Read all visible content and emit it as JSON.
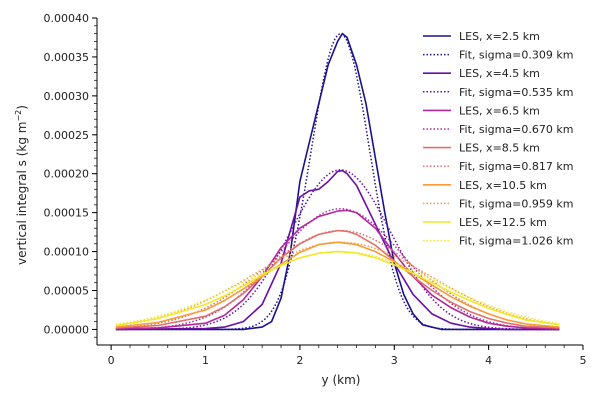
{
  "chart_data": {
    "type": "line",
    "title": "",
    "xlabel": "y (km)",
    "ylabel_main": "vertical integral s (kg m",
    "ylabel_sup": "−2",
    "ylabel_end": ")",
    "xlim": [
      -0.15,
      5.0
    ],
    "ylim": [
      -2e-05,
      0.0004
    ],
    "x_ticks": [
      0,
      1,
      2,
      3,
      4,
      5
    ],
    "x_tick_labels": [
      "0",
      "1",
      "2",
      "3",
      "4",
      "5"
    ],
    "y_ticks": [
      0,
      5e-05,
      0.0001,
      0.00015,
      0.0002,
      0.00025,
      0.0003,
      0.00035,
      0.0004
    ],
    "y_tick_labels": [
      "0.00000",
      "0.00005",
      "0.00010",
      "0.00015",
      "0.00020",
      "0.00025",
      "0.00030",
      "0.00035",
      "0.00040"
    ],
    "grid": false,
    "legend_position": "top-right",
    "series": [
      {
        "name": "LES, x=2.5 km",
        "style": "solid",
        "color": "#1a128e",
        "x": [
          0.05,
          1.4,
          1.6,
          1.7,
          1.8,
          1.9,
          2.0,
          2.1,
          2.2,
          2.3,
          2.4,
          2.45,
          2.5,
          2.6,
          2.7,
          2.8,
          2.9,
          3.0,
          3.1,
          3.2,
          3.3,
          3.5,
          4.75
        ],
        "y": [
          0,
          0,
          3e-06,
          1e-05,
          4e-05,
          0.0001,
          0.00019,
          0.00024,
          0.00029,
          0.00034,
          0.00037,
          0.00038,
          0.000375,
          0.00034,
          0.00029,
          0.00022,
          0.00015,
          8.5e-05,
          4.5e-05,
          2e-05,
          6e-06,
          0,
          0
        ]
      },
      {
        "name": "Fit, sigma=0.309 km",
        "style": "dotted",
        "color": "#1a128e",
        "fit": {
          "amplitude": 0.00038,
          "center": 2.43,
          "sigma": 0.309,
          "xmin": 0.05,
          "xmax": 4.75
        }
      },
      {
        "name": "LES, x=4.5 km",
        "style": "solid",
        "color": "#6a0fa6",
        "x": [
          0.05,
          1.0,
          1.2,
          1.4,
          1.6,
          1.8,
          2.0,
          2.1,
          2.2,
          2.3,
          2.4,
          2.45,
          2.5,
          2.6,
          2.7,
          2.8,
          2.9,
          3.0,
          3.2,
          3.4,
          3.6,
          3.8,
          4.0,
          4.2,
          4.75
        ],
        "y": [
          0,
          1e-06,
          3e-06,
          1e-05,
          3.2e-05,
          8.5e-05,
          0.00017,
          0.000178,
          0.00018,
          0.00019,
          0.000203,
          0.000204,
          0.0002,
          0.000185,
          0.00016,
          0.000135,
          0.00011,
          8.5e-05,
          4.5e-05,
          2e-05,
          8e-06,
          3e-06,
          1e-06,
          0,
          0
        ]
      },
      {
        "name": "Fit, sigma=0.535 km",
        "style": "dotted",
        "color": "#6a0fa6",
        "fit": {
          "amplitude": 0.000205,
          "center": 2.43,
          "sigma": 0.535,
          "xmin": 0.05,
          "xmax": 4.75
        }
      },
      {
        "name": "LES, x=6.5 km",
        "style": "solid",
        "color": "#b02a9c",
        "x": [
          0.05,
          0.5,
          1.0,
          1.2,
          1.4,
          1.6,
          1.8,
          2.0,
          2.2,
          2.4,
          2.5,
          2.6,
          2.8,
          3.0,
          3.2,
          3.4,
          3.6,
          3.8,
          4.0,
          4.2,
          4.4,
          4.75
        ],
        "y": [
          1e-06,
          2e-06,
          8e-06,
          1.8e-05,
          3.8e-05,
          6.8e-05,
          0.000105,
          0.00013,
          0.000145,
          0.000152,
          0.000153,
          0.00015,
          0.00013,
          9.8e-05,
          6.8e-05,
          4.4e-05,
          2.8e-05,
          1.6e-05,
          8e-06,
          4e-06,
          2e-06,
          1e-06
        ]
      },
      {
        "name": "Fit, sigma=0.670 km",
        "style": "dotted",
        "color": "#b02a9c",
        "fit": {
          "amplitude": 0.000155,
          "center": 2.43,
          "sigma": 0.67,
          "xmin": 0.05,
          "xmax": 4.75
        }
      },
      {
        "name": "LES, x=8.5 km",
        "style": "solid",
        "color": "#e0706a",
        "x": [
          0.05,
          0.5,
          1.0,
          1.2,
          1.4,
          1.6,
          1.8,
          2.0,
          2.2,
          2.4,
          2.5,
          2.6,
          2.8,
          3.0,
          3.2,
          3.4,
          3.6,
          3.8,
          4.0,
          4.2,
          4.4,
          4.75
        ],
        "y": [
          2e-06,
          5e-06,
          1.7e-05,
          2.9e-05,
          4.6e-05,
          6.8e-05,
          9.2e-05,
          0.00011,
          0.000122,
          0.000127,
          0.000126,
          0.000122,
          0.000108,
          8.8e-05,
          6.8e-05,
          5e-05,
          3.5e-05,
          2.3e-05,
          1.4e-05,
          8e-06,
          4e-06,
          2e-06
        ]
      },
      {
        "name": "Fit, sigma=0.817 km",
        "style": "dotted",
        "color": "#e0706a",
        "fit": {
          "amplitude": 0.000127,
          "center": 2.43,
          "sigma": 0.817,
          "xmin": 0.05,
          "xmax": 4.75
        }
      },
      {
        "name": "LES, x=10.5 km",
        "style": "solid",
        "color": "#f89b38",
        "x": [
          0.05,
          0.5,
          1.0,
          1.2,
          1.4,
          1.6,
          1.8,
          2.0,
          2.2,
          2.4,
          2.6,
          2.8,
          3.0,
          3.2,
          3.4,
          3.6,
          3.8,
          4.0,
          4.2,
          4.4,
          4.75
        ],
        "y": [
          3e-06,
          9e-06,
          2.5e-05,
          3.7e-05,
          5.2e-05,
          6.8e-05,
          8.4e-05,
          9.9e-05,
          0.000109,
          0.000112,
          0.000109,
          0.0001,
          8.7e-05,
          7.2e-05,
          5.7e-05,
          4.2e-05,
          3e-05,
          2e-05,
          1.2e-05,
          7e-06,
          3e-06
        ]
      },
      {
        "name": "Fit, sigma=0.959 km",
        "style": "dotted",
        "color": "#f89b38",
        "fit": {
          "amplitude": 0.000112,
          "center": 2.43,
          "sigma": 0.959,
          "xmin": 0.05,
          "xmax": 4.75
        }
      },
      {
        "name": "LES, x=12.5 km",
        "style": "solid",
        "color": "#f0e92a",
        "x": [
          0.05,
          0.5,
          1.0,
          1.2,
          1.4,
          1.6,
          1.8,
          2.0,
          2.2,
          2.4,
          2.6,
          2.8,
          3.0,
          3.2,
          3.4,
          3.6,
          3.8,
          4.0,
          4.2,
          4.4,
          4.75
        ],
        "y": [
          5e-06,
          1.4e-05,
          3.2e-05,
          4.3e-05,
          5.6e-05,
          7e-05,
          8.2e-05,
          9.2e-05,
          9.8e-05,
          0.0001,
          9.8e-05,
          9.2e-05,
          8.3e-05,
          7.2e-05,
          6e-05,
          4.8e-05,
          3.7e-05,
          2.7e-05,
          1.9e-05,
          1.2e-05,
          6e-06
        ]
      },
      {
        "name": "Fit, sigma=1.026 km",
        "style": "dotted",
        "color": "#f0e92a",
        "fit": {
          "amplitude": 0.0001,
          "center": 2.43,
          "sigma": 1.026,
          "xmin": 0.05,
          "xmax": 4.75
        }
      }
    ]
  }
}
